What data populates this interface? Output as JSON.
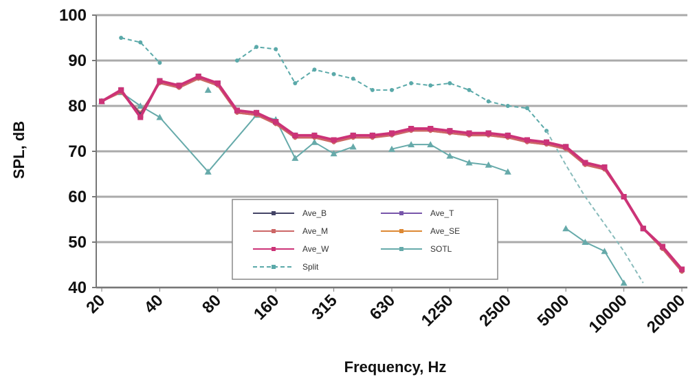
{
  "chart_data": {
    "type": "line",
    "xlabel": "Frequency, Hz",
    "ylabel": "SPL, dB",
    "ylim": [
      40,
      100
    ],
    "yticks": [
      40,
      50,
      60,
      70,
      80,
      90,
      100
    ],
    "x_tick_labels": [
      "20",
      "40",
      "80",
      "160",
      "315",
      "630",
      "1250",
      "2500",
      "5000",
      "10000",
      "20000"
    ],
    "x_categories": [
      "20",
      "25",
      "31.5",
      "40",
      "50",
      "63",
      "80",
      "100",
      "125",
      "160",
      "200",
      "250",
      "315",
      "400",
      "500",
      "630",
      "800",
      "1000",
      "1250",
      "1600",
      "2000",
      "2500",
      "3150",
      "4000",
      "5000",
      "6300",
      "8000",
      "10000",
      "12500",
      "16000",
      "20000"
    ],
    "grid": true,
    "legend_position": "bottom-center",
    "series": [
      {
        "name": "Ave_B",
        "color": "#444466",
        "marker": "square",
        "values": [
          81,
          83.5,
          78,
          85.5,
          84.5,
          86.5,
          85,
          79,
          78.5,
          76.5,
          73.5,
          73.5,
          72.5,
          73.5,
          73.5,
          74,
          75,
          75,
          74.5,
          74,
          74,
          73.5,
          72.5,
          72,
          71,
          67.5,
          66.5,
          60,
          53,
          49,
          44
        ]
      },
      {
        "name": "Ave_M",
        "color": "#cc6666",
        "marker": "dash",
        "values": [
          81,
          83,
          78.5,
          85,
          84,
          86,
          84.5,
          78.5,
          78,
          76,
          73,
          73,
          72,
          73,
          73,
          73.5,
          74.5,
          74.5,
          74,
          73.5,
          73.5,
          73,
          72,
          71.5,
          70.5,
          67,
          66,
          60,
          53,
          48.5,
          43.5
        ]
      },
      {
        "name": "Ave_W",
        "color": "#cc3377",
        "marker": "square",
        "values": [
          81,
          83.5,
          77.5,
          85.5,
          84.5,
          86.5,
          85,
          79,
          78.5,
          76.5,
          73.5,
          73.5,
          72.5,
          73.5,
          73.5,
          74,
          75,
          75,
          74.5,
          74,
          74,
          73.5,
          72.5,
          72,
          71,
          67.5,
          66.5,
          60,
          53,
          49,
          44
        ]
      },
      {
        "name": "Split",
        "color": "#5aa9a9",
        "marker": "dash",
        "values": [
          null,
          95,
          94,
          89.5,
          null,
          null,
          null,
          90,
          93,
          92.5,
          85,
          88,
          87,
          86,
          83.5,
          83.5,
          85,
          84.5,
          85,
          83.5,
          81,
          80,
          79.5,
          74.5,
          null,
          null,
          null,
          null,
          null,
          null,
          null
        ]
      },
      {
        "name": "Ave_T",
        "color": "#7755aa",
        "marker": "cross",
        "values": [
          81,
          83.5,
          77.5,
          85.5,
          84.5,
          86.5,
          85,
          79,
          78.5,
          76.5,
          73.5,
          73.5,
          72.5,
          73.5,
          73.5,
          74,
          75,
          75,
          74.5,
          74,
          74,
          73.5,
          72.5,
          72,
          71,
          67.5,
          66.5,
          60,
          53,
          49,
          44
        ]
      },
      {
        "name": "Ave_SE",
        "color": "#dd8833",
        "marker": "dash",
        "values": [
          81,
          83,
          78,
          85.5,
          84,
          86,
          84.5,
          78.5,
          78,
          76,
          73,
          73,
          72,
          73,
          73,
          74,
          75,
          74.5,
          74,
          73.5,
          73.5,
          73,
          72,
          71.5,
          70.5,
          67,
          66,
          60,
          53,
          48.5,
          43.5
        ]
      },
      {
        "name": "SOTL",
        "color": "#66aaaa",
        "marker": "triangle",
        "values": [
          81,
          83,
          80,
          77.5,
          null,
          null,
          null,
          null,
          78,
          77,
          68.5,
          72,
          69.5,
          71,
          null,
          70.5,
          71.5,
          71.5,
          69,
          67.5,
          67,
          65.5,
          null,
          null,
          53,
          50,
          48,
          41,
          null,
          null,
          null
        ],
        "extra_points": [
          {
            "index": 5.5,
            "value": 83.5
          },
          {
            "index": 5.5,
            "value": 65.5
          }
        ]
      }
    ]
  }
}
